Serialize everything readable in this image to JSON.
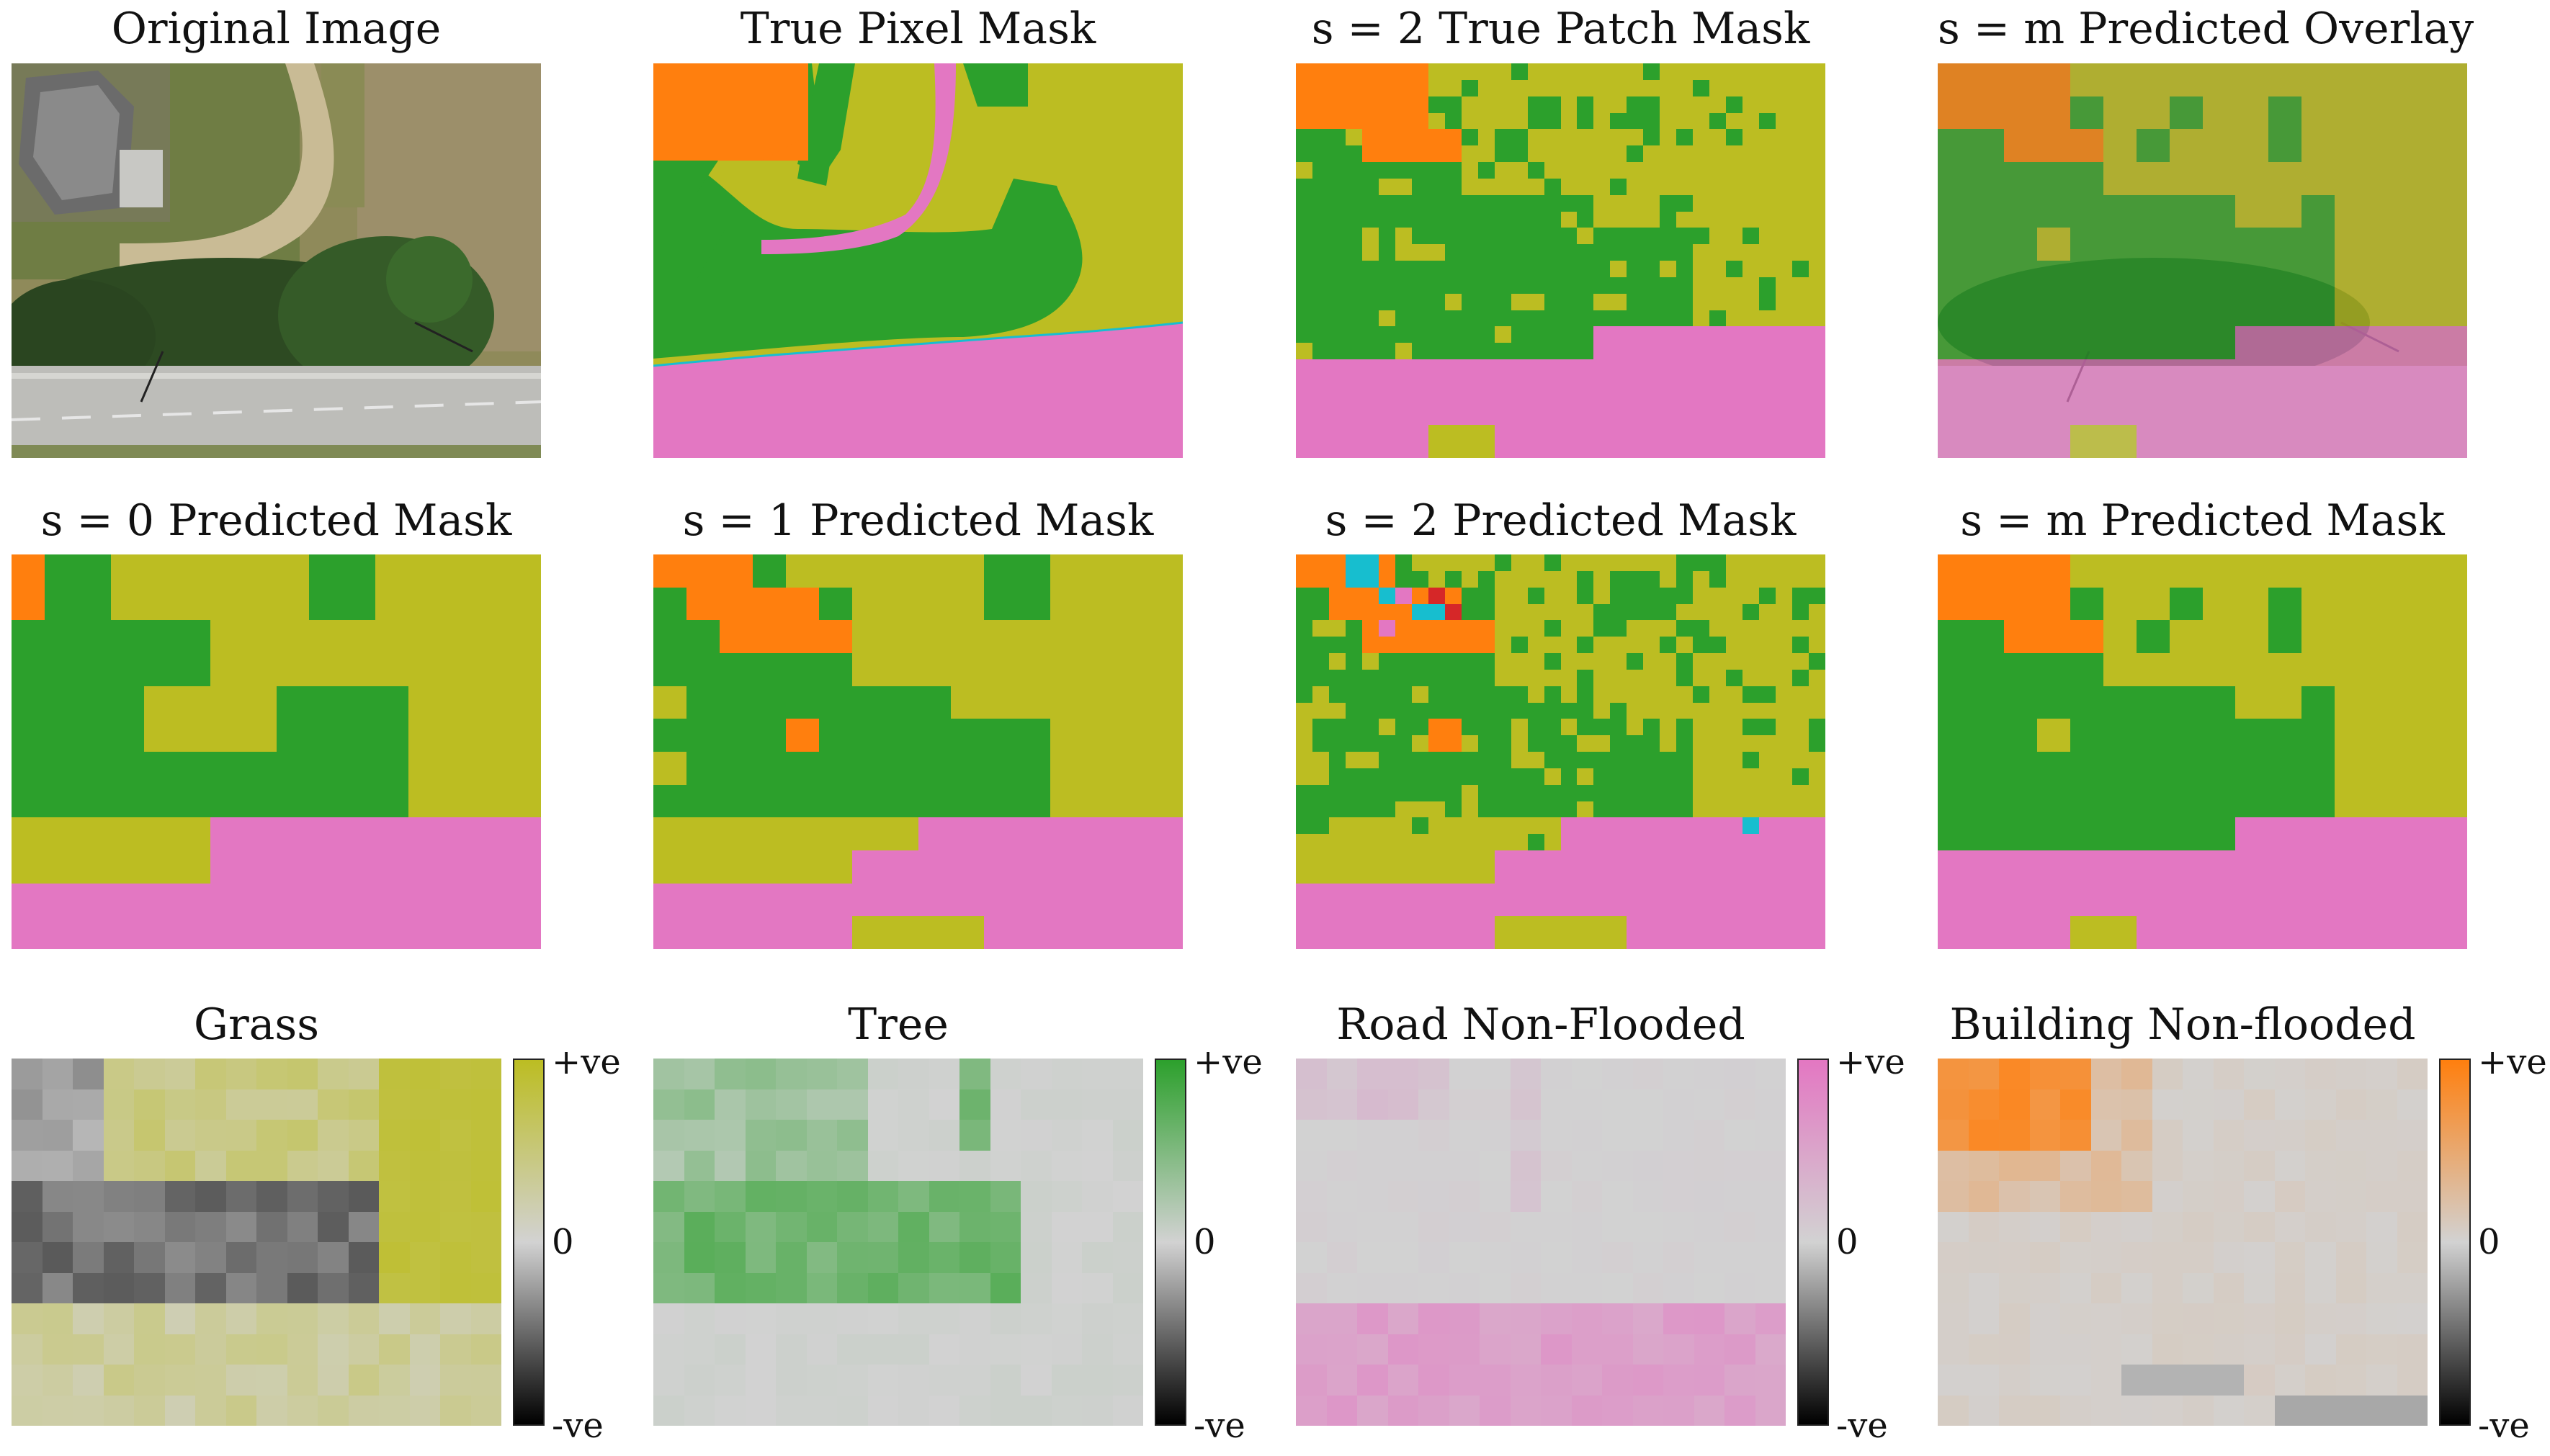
{
  "colors": {
    "grass": "#bcbd22",
    "tree": "#2ca02c",
    "road": "#e377c2",
    "building": "#ff7f0e",
    "vehicle": "#17becf",
    "red": "#d62728",
    "neutral": "#d2d2d2",
    "negative": "#000000"
  },
  "row1": {
    "original_title": "Original Image",
    "true_pixel_title": "True Pixel Mask",
    "true_patch_title": "s = 2 True Patch Mask",
    "overlay_title": "s = m Predicted Overlay"
  },
  "row2": {
    "s0_title": "s = 0 Predicted Mask",
    "s1_title": "s = 1 Predicted Mask",
    "s2_title": "s = 2 Predicted Mask",
    "sm_title": "s = m Predicted Mask"
  },
  "row3": {
    "grass_title": "Grass",
    "tree_title": "Tree",
    "road_title": "Road Non-Flooded",
    "building_title": "Building Non-flooded"
  },
  "colorbar": {
    "pos_label": "+ve",
    "zero_label": "0",
    "neg_label": "-ve"
  },
  "masks": {
    "s0": [
      "BGGYYYYYYGGYYYYY",
      "BGGYYYYYYGGYYYYY",
      "GGGGGGYYYYYYYYYY",
      "GGGGGGYYYYYYYYYY",
      "GGGGYYYYGGGGYYYY",
      "GGGGYYYYGGGGYYYY",
      "GGGGGGGGGGGGYYYY",
      "GGGGGGGGGGGGYYYY",
      "YYYYYYRRRRRRRRRR",
      "YYYYYYRRRRRRRRRR",
      "RRRRRRRRRRRRRRRR",
      "RRRRRRRRRRRRRRRR"
    ],
    "s1": [
      "BBBGYYYYYYGGYYYY",
      "GBBBBGYYYYGGYYYY",
      "GGBBBBYYYYYYYYYY",
      "GGGGGGYYYYYYYYYY",
      "YGGGGGGGGYYYYYYY",
      "GGGGBGGGGGGGYYYY",
      "YGGGGGGGGGGGYYYY",
      "GGGGGGGGGGGGYYYY",
      "YYYYYYYYRRRRRRRR",
      "YYYYYYRRRRRRRRRR",
      "RRRRRRRRRRRRRRRR",
      "RRRRRRYYYYRRRRRR"
    ],
    "sm": [
      "BBBBYYYYYYYYYYYY",
      "BBBBGYYGYYGYYYYY",
      "GGBBBYGYYYGYYYYY",
      "GGGGGYYYYYYYYYYY",
      "GGGGGGGGGYYGYYYY",
      "GGGYGGGGGGGGYYYY",
      "GGGGGGGGGGGGYYYY",
      "GGGGGGGGGGGGYYYY",
      "GGGGGGGGGRRRRRRR",
      "RRRRRRRRRRRRRRRR",
      "RRRRRRRRRRRRRRRR",
      "RRRRYYRRRRRRRRRR"
    ]
  }
}
